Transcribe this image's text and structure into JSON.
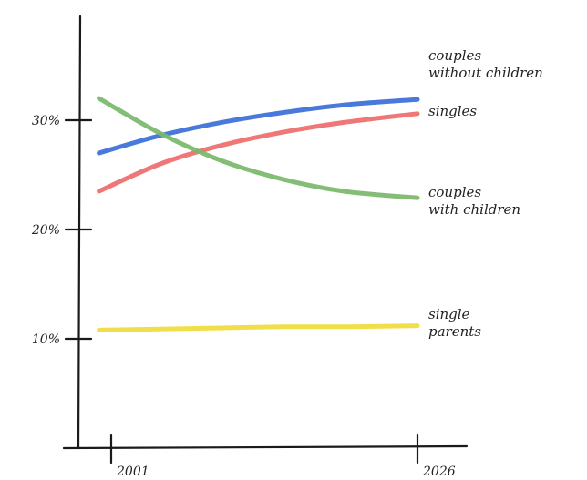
{
  "chart_data": {
    "type": "line",
    "title": "",
    "xlabel": "",
    "ylabel": "",
    "xlim": [
      2001,
      2026
    ],
    "ylim": [
      0,
      38
    ],
    "x_ticks": [
      {
        "value": 2001,
        "label": "2001"
      },
      {
        "value": 2026,
        "label": "2026"
      }
    ],
    "y_ticks": [
      {
        "value": 10,
        "label": "10%"
      },
      {
        "value": 20,
        "label": "20%"
      },
      {
        "value": 30,
        "label": "30%"
      }
    ],
    "grid": false,
    "legend": "none",
    "series": [
      {
        "name": "couples without children",
        "color": "#3a6fd8",
        "label_lines": [
          "couples",
          "without children"
        ],
        "x": [
          2000,
          2005,
          2010,
          2015,
          2020,
          2026
        ],
        "y": [
          27.0,
          28.6,
          29.8,
          30.7,
          31.4,
          31.9
        ]
      },
      {
        "name": "singles",
        "color": "#ef6b6b",
        "label_lines": [
          "singles"
        ],
        "x": [
          2000,
          2005,
          2010,
          2015,
          2020,
          2026
        ],
        "y": [
          23.5,
          26.0,
          27.7,
          28.9,
          29.8,
          30.6
        ]
      },
      {
        "name": "couples with children",
        "color": "#7ab86a",
        "label_lines": [
          "couples",
          "with children"
        ],
        "x": [
          2000,
          2005,
          2010,
          2015,
          2020,
          2026
        ],
        "y": [
          32.0,
          28.8,
          26.3,
          24.6,
          23.5,
          22.9
        ]
      },
      {
        "name": "single parents",
        "color": "#f0dc3a",
        "label_lines": [
          "single",
          "parents"
        ],
        "x": [
          2000,
          2005,
          2010,
          2015,
          2020,
          2026
        ],
        "y": [
          10.8,
          10.9,
          11.0,
          11.1,
          11.1,
          11.2
        ]
      }
    ]
  }
}
